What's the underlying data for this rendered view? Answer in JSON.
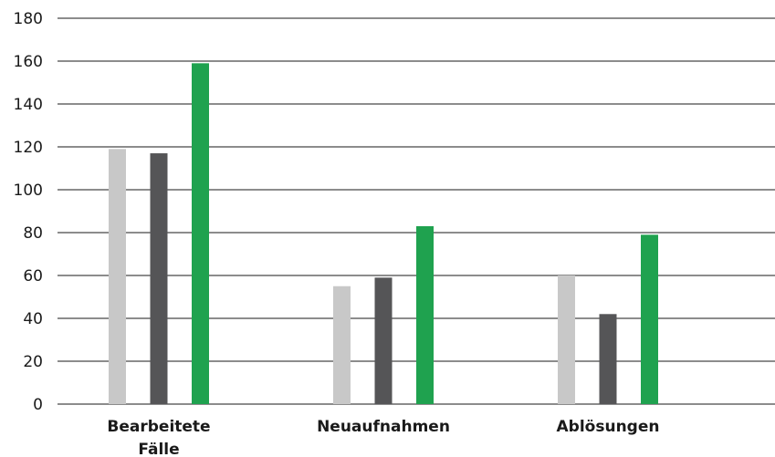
{
  "chart_data": {
    "type": "bar",
    "categories": [
      [
        "Bearbeitete",
        "Fälle"
      ],
      [
        "Neuaufnahmen"
      ],
      [
        "Ablösungen"
      ]
    ],
    "series": [
      {
        "values": [
          119,
          55,
          60
        ],
        "color": "#c8c8c8"
      },
      {
        "values": [
          117,
          59,
          42
        ],
        "color": "#555557"
      },
      {
        "values": [
          159,
          83,
          79
        ],
        "color": "#1fa24f"
      }
    ],
    "ylim": [
      0,
      180
    ],
    "yticks": [
      0,
      20,
      40,
      60,
      80,
      100,
      120,
      140,
      160,
      180
    ],
    "grid": true,
    "legend": false,
    "gridline_color": "#1a1a1a"
  }
}
